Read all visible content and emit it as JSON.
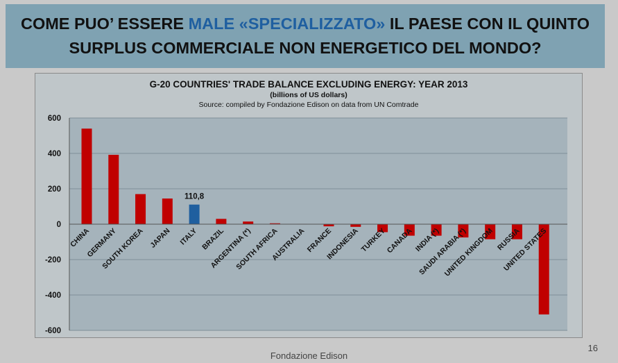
{
  "slide": {
    "title_part1": "COME PUO’ ESSERE ",
    "title_highlight": "MALE «SPECIALIZZATO»",
    "title_part2": " IL PAESE CON IL QUINTO",
    "title_line2": "SURPLUS COMMERCIALE NON ENERGETICO DEL MONDO?",
    "highlight_color": "#1f5fa0",
    "footer": "Fondazione Edison",
    "page_number": "16"
  },
  "chart_data": {
    "type": "bar",
    "title": "G-20 COUNTRIES' TRADE BALANCE EXCLUDING ENERGY: YEAR 2013",
    "subtitle": "(billions of US dollars)",
    "source": "Source: compiled by Fondazione Edison on data from UN Comtrade",
    "categories": [
      "CHINA",
      "GERMANY",
      "SOUTH KOREA",
      "JAPAN",
      "ITALY",
      "BRAZIL",
      "ARGENTINA (*)",
      "SOUTH AFRICA",
      "AUSTRALIA",
      "FRANCE",
      "INDONESIA",
      "TURKEY",
      "CANADA",
      "INDIA (*)",
      "SAUDI ARABIA (*)",
      "UNITED KINGDOM",
      "RUSSIA",
      "UNITED STATES"
    ],
    "values": [
      540,
      392,
      170,
      145,
      110.8,
      30,
      15,
      5,
      2,
      -12,
      -15,
      -45,
      -65,
      -65,
      -75,
      -85,
      -85,
      -510
    ],
    "ylim": [
      -600,
      600
    ],
    "yticks": [
      -600,
      -400,
      -200,
      0,
      200,
      400,
      600
    ],
    "ytick_labels": [
      "-600",
      "-400",
      "-200",
      "0",
      "200",
      "400",
      "600"
    ],
    "grid": true,
    "highlight_category": "ITALY",
    "highlight_label": "110,8",
    "colors": {
      "bar": "#c00000",
      "highlight": "#1f5f9f",
      "plot_bg": "#a5b3bb",
      "grid": "#7f8f98"
    }
  }
}
